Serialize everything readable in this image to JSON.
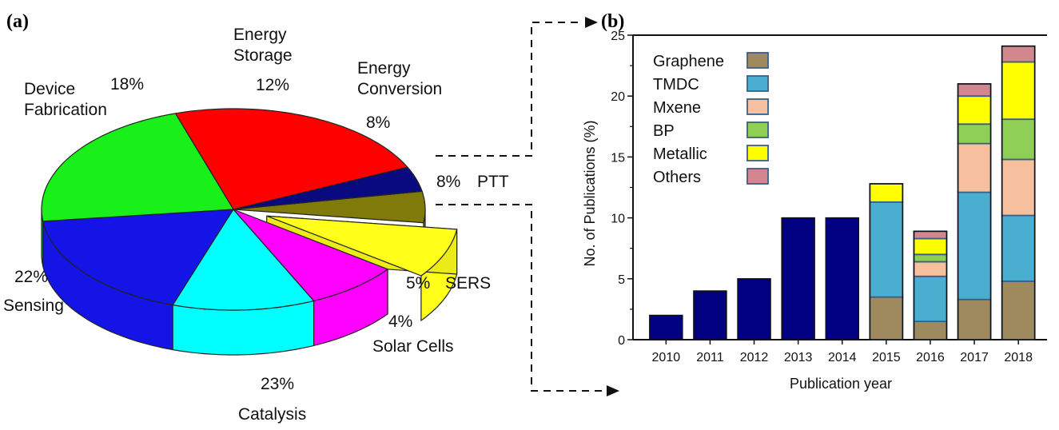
{
  "panel_a_label": "(a)",
  "panel_b_label": "(b)",
  "colors": {
    "device_fabrication": "#1414e6",
    "energy_storage": "#00ffff",
    "energy_conversion": "#ff00ff",
    "ptt": "#ffff19",
    "sers": "#7f7a0a",
    "solar_cells": "#0a0a80",
    "catalysis": "#ff0000",
    "sensing": "#19f019",
    "bar_single": "#000080",
    "graphene": "#9e8a5c",
    "tmdc": "#4aaed0",
    "mxene": "#f6c09e",
    "bp": "#8fcf55",
    "metallic": "#ffff00",
    "others": "#d4868f"
  },
  "chart_data": [
    {
      "type": "pie",
      "slices": [
        {
          "key": "device_fabrication",
          "name_lines": [
            "Device",
            "Fabrication"
          ],
          "percent_label": "18%",
          "value": 18
        },
        {
          "key": "energy_storage",
          "name_lines": [
            "Energy",
            "Storage"
          ],
          "percent_label": "12%",
          "value": 12
        },
        {
          "key": "energy_conversion",
          "name_lines": [
            "Energy",
            "Conversion"
          ],
          "percent_label": "8%",
          "value": 8
        },
        {
          "key": "ptt",
          "name_lines": [
            "PTT"
          ],
          "percent_label": "8%",
          "value": 8,
          "exploded": true
        },
        {
          "key": "sers",
          "name_lines": [
            "SERS"
          ],
          "percent_label": "5%",
          "value": 5
        },
        {
          "key": "solar_cells",
          "name_lines": [
            "Solar Cells"
          ],
          "percent_label": "4%",
          "value": 4
        },
        {
          "key": "catalysis",
          "name_lines": [
            "Catalysis"
          ],
          "percent_label": "23%",
          "value": 23
        },
        {
          "key": "sensing",
          "name_lines": [
            "Sensing"
          ],
          "percent_label": "22%",
          "value": 22
        }
      ]
    },
    {
      "type": "bar",
      "stacked": true,
      "xlabel": "Publication year",
      "ylabel": "No. of Publications (%)",
      "ylim": [
        0,
        25
      ],
      "yticks": [
        "0",
        "5",
        "10",
        "15",
        "20",
        "25"
      ],
      "categories": [
        "2010",
        "2011",
        "2012",
        "2013",
        "2014",
        "2015",
        "2016",
        "2017",
        "2018"
      ],
      "total_only": [
        2,
        4,
        5,
        10,
        10,
        null,
        null,
        null,
        null
      ],
      "series": [
        {
          "name": "Graphene",
          "color_key": "graphene",
          "values": [
            0,
            0,
            0,
            0,
            0,
            3.5,
            1.5,
            3.3,
            4.8
          ]
        },
        {
          "name": "TMDC",
          "color_key": "tmdc",
          "values": [
            0,
            0,
            0,
            0,
            0,
            7.8,
            3.7,
            8.8,
            5.4
          ]
        },
        {
          "name": "Mxene",
          "color_key": "mxene",
          "values": [
            0,
            0,
            0,
            0,
            0,
            0,
            1.2,
            4.0,
            4.6
          ]
        },
        {
          "name": "BP",
          "color_key": "bp",
          "values": [
            0,
            0,
            0,
            0,
            0,
            0,
            0.6,
            1.6,
            3.3
          ]
        },
        {
          "name": "Metallic",
          "color_key": "metallic",
          "values": [
            0,
            0,
            0,
            0,
            0,
            1.5,
            1.3,
            2.3,
            4.7
          ]
        },
        {
          "name": "Others",
          "color_key": "others",
          "values": [
            0,
            0,
            0,
            0,
            0,
            0,
            0.6,
            1.0,
            1.3
          ]
        }
      ],
      "legend_position": "top-left"
    }
  ]
}
